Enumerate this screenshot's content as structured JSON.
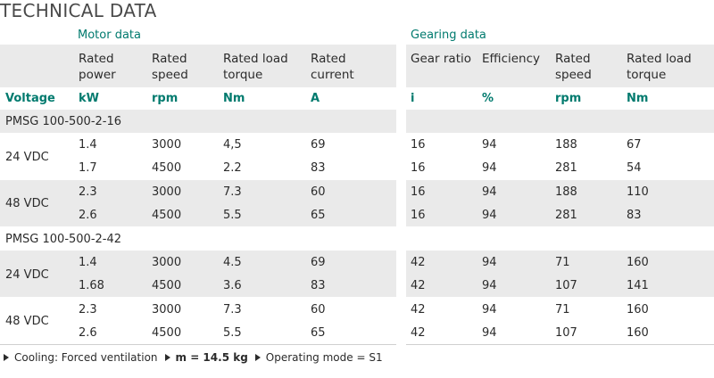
{
  "title": "TECHNICAL DATA",
  "motor_section": "Motor data",
  "gearing_section": "Gearing data",
  "col_headers": {
    "rated_power": "Rated\npower",
    "rated_speed": "Rated\nspeed",
    "rated_load_torque": "Rated load\ntorque",
    "rated_current": "Rated\ncurrent",
    "gear_ratio": "Gear ratio",
    "efficiency": "Efficiency",
    "g_rated_speed": "Rated\nspeed",
    "g_rated_load_torque": "Rated load\ntorque"
  },
  "units": {
    "voltage": "Voltage",
    "kw": "kW",
    "rpm": "rpm",
    "nm": "Nm",
    "a": "A",
    "i": "i",
    "pct": "%",
    "g_rpm": "rpm",
    "g_nm": "Nm"
  },
  "groups": [
    {
      "model": "PMSG 100-500-2-16",
      "voltages": [
        {
          "label": "24 VDC",
          "rows": [
            {
              "power": "1.4",
              "speed": "3000",
              "torque": "4,5",
              "current": "69",
              "ratio": "16",
              "eff": "94",
              "gspeed": "188",
              "gtorque": "67"
            },
            {
              "power": "1.7",
              "speed": "4500",
              "torque": "2.2",
              "current": "83",
              "ratio": "16",
              "eff": "94",
              "gspeed": "281",
              "gtorque": "54"
            }
          ]
        },
        {
          "label": "48 VDC",
          "rows": [
            {
              "power": "2.3",
              "speed": "3000",
              "torque": "7.3",
              "current": "60",
              "ratio": "16",
              "eff": "94",
              "gspeed": "188",
              "gtorque": "110"
            },
            {
              "power": "2.6",
              "speed": "4500",
              "torque": "5.5",
              "current": "65",
              "ratio": "16",
              "eff": "94",
              "gspeed": "281",
              "gtorque": "83"
            }
          ]
        }
      ]
    },
    {
      "model": "PMSG 100-500-2-42",
      "voltages": [
        {
          "label": "24 VDC",
          "rows": [
            {
              "power": "1.4",
              "speed": "3000",
              "torque": "4.5",
              "current": "69",
              "ratio": "42",
              "eff": "94",
              "gspeed": "71",
              "gtorque": "160"
            },
            {
              "power": "1.68",
              "speed": "4500",
              "torque": "3.6",
              "current": "83",
              "ratio": "42",
              "eff": "94",
              "gspeed": "107",
              "gtorque": "141"
            }
          ]
        },
        {
          "label": "48 VDC",
          "rows": [
            {
              "power": "2.3",
              "speed": "3000",
              "torque": "7.3",
              "current": "60",
              "ratio": "42",
              "eff": "94",
              "gspeed": "71",
              "gtorque": "160"
            },
            {
              "power": "2.6",
              "speed": "4500",
              "torque": "5.5",
              "current": "65",
              "ratio": "42",
              "eff": "94",
              "gspeed": "107",
              "gtorque": "160"
            }
          ]
        }
      ]
    }
  ],
  "footer": {
    "cooling": "Cooling: Forced ventilation",
    "mass": "m = 14.5 kg",
    "mode": "Operating mode = S1"
  },
  "colors": {
    "accent": "#007a6e",
    "band": "#eaeaea"
  }
}
